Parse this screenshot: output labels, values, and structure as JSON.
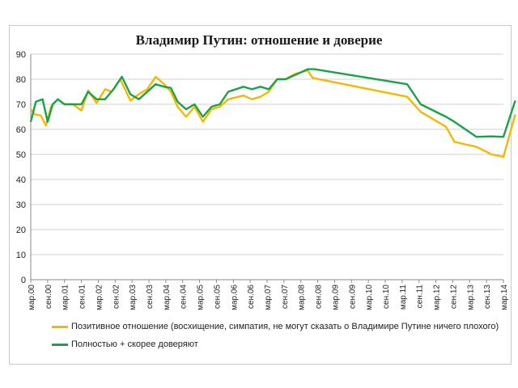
{
  "title": "Владимир Путин: отношение и доверие",
  "chart_data": {
    "type": "line",
    "ylim": [
      0,
      90
    ],
    "yticks": [
      0,
      10,
      20,
      30,
      40,
      50,
      60,
      70,
      80,
      90
    ],
    "xlim": [
      0,
      14
    ],
    "xticks": [
      {
        "x": 0,
        "label": "мар.00"
      },
      {
        "x": 0.5,
        "label": "сен.00"
      },
      {
        "x": 1,
        "label": "мар.01"
      },
      {
        "x": 1.5,
        "label": "сен.01"
      },
      {
        "x": 2,
        "label": "мар.02"
      },
      {
        "x": 2.5,
        "label": "сен.02"
      },
      {
        "x": 3,
        "label": "мар.03"
      },
      {
        "x": 3.5,
        "label": "сен.03"
      },
      {
        "x": 4,
        "label": "мар.04"
      },
      {
        "x": 4.5,
        "label": "сен.04"
      },
      {
        "x": 5,
        "label": "мар.05"
      },
      {
        "x": 5.5,
        "label": "сен.05"
      },
      {
        "x": 6,
        "label": "мар.06"
      },
      {
        "x": 6.5,
        "label": "сен.06"
      },
      {
        "x": 7,
        "label": "мар.07"
      },
      {
        "x": 7.5,
        "label": "сен.07"
      },
      {
        "x": 8,
        "label": "мар.08"
      },
      {
        "x": 8.5,
        "label": "сен.08"
      },
      {
        "x": 9,
        "label": "мар.09"
      },
      {
        "x": 9.5,
        "label": "сен.09"
      },
      {
        "x": 10,
        "label": "мар.10"
      },
      {
        "x": 10.5,
        "label": "сен.10"
      },
      {
        "x": 11,
        "label": "мар.11"
      },
      {
        "x": 11.5,
        "label": "сен.11"
      },
      {
        "x": 12,
        "label": "мар.12"
      },
      {
        "x": 12.5,
        "label": "сен.12"
      },
      {
        "x": 13,
        "label": "мар.13"
      },
      {
        "x": 13.5,
        "label": "сен.13"
      },
      {
        "x": 14,
        "label": "мар.14"
      }
    ],
    "grid": "horizontal",
    "legend_position": "bottom",
    "series": [
      {
        "name": "Позитивное отношение (восхищение, симпатия, не могут сказать о Владимире Путине ничего плохого)",
        "color": "#f5b800",
        "points": [
          [
            0,
            68
          ],
          [
            0.12,
            66
          ],
          [
            0.3,
            65.5
          ],
          [
            0.45,
            61.5
          ],
          [
            0.6,
            69
          ],
          [
            0.8,
            72
          ],
          [
            1.0,
            70
          ],
          [
            1.25,
            70
          ],
          [
            1.5,
            67.5
          ],
          [
            1.7,
            75.5
          ],
          [
            1.95,
            70.5
          ],
          [
            2.2,
            76
          ],
          [
            2.4,
            75
          ],
          [
            2.65,
            80
          ],
          [
            2.95,
            71.5
          ],
          [
            3.2,
            74
          ],
          [
            3.45,
            76
          ],
          [
            3.7,
            81
          ],
          [
            3.95,
            78
          ],
          [
            4.15,
            75
          ],
          [
            4.35,
            69
          ],
          [
            4.6,
            65
          ],
          [
            4.85,
            69
          ],
          [
            5.1,
            63
          ],
          [
            5.35,
            68
          ],
          [
            5.6,
            69
          ],
          [
            5.85,
            72
          ],
          [
            6.3,
            73.5
          ],
          [
            6.55,
            72
          ],
          [
            6.8,
            73
          ],
          [
            7.05,
            75
          ],
          [
            7.3,
            80
          ],
          [
            7.55,
            80
          ],
          [
            7.8,
            82
          ],
          [
            8.2,
            83.5
          ],
          [
            8.35,
            80.5
          ],
          [
            11.15,
            73
          ],
          [
            11.55,
            67
          ],
          [
            12.3,
            61
          ],
          [
            12.55,
            55
          ],
          [
            13.2,
            53
          ],
          [
            13.65,
            50
          ],
          [
            14.0,
            49
          ],
          [
            14.35,
            66
          ]
        ]
      },
      {
        "name": "Полностью + скорее доверяют",
        "color": "#1aa24a",
        "points": [
          [
            0,
            63
          ],
          [
            0.15,
            71
          ],
          [
            0.35,
            72
          ],
          [
            0.5,
            63
          ],
          [
            0.65,
            70
          ],
          [
            0.8,
            72
          ],
          [
            1.0,
            70
          ],
          [
            1.5,
            70
          ],
          [
            1.7,
            75
          ],
          [
            1.95,
            72
          ],
          [
            2.2,
            72
          ],
          [
            2.45,
            76
          ],
          [
            2.7,
            81
          ],
          [
            2.95,
            74
          ],
          [
            3.2,
            72
          ],
          [
            3.7,
            78
          ],
          [
            3.95,
            77
          ],
          [
            4.15,
            76.5
          ],
          [
            4.35,
            71
          ],
          [
            4.6,
            68
          ],
          [
            4.85,
            70
          ],
          [
            5.1,
            65
          ],
          [
            5.35,
            69
          ],
          [
            5.6,
            70
          ],
          [
            5.85,
            75
          ],
          [
            6.3,
            77
          ],
          [
            6.55,
            76
          ],
          [
            6.8,
            77
          ],
          [
            7.05,
            76
          ],
          [
            7.3,
            80
          ],
          [
            7.55,
            80
          ],
          [
            7.8,
            81.5
          ],
          [
            8.2,
            84
          ],
          [
            8.4,
            84
          ],
          [
            11.15,
            78
          ],
          [
            11.55,
            70
          ],
          [
            12.3,
            65
          ],
          [
            12.55,
            63
          ],
          [
            13.2,
            57
          ],
          [
            13.65,
            57.2
          ],
          [
            14.0,
            57
          ],
          [
            14.35,
            71.5
          ]
        ]
      }
    ]
  }
}
